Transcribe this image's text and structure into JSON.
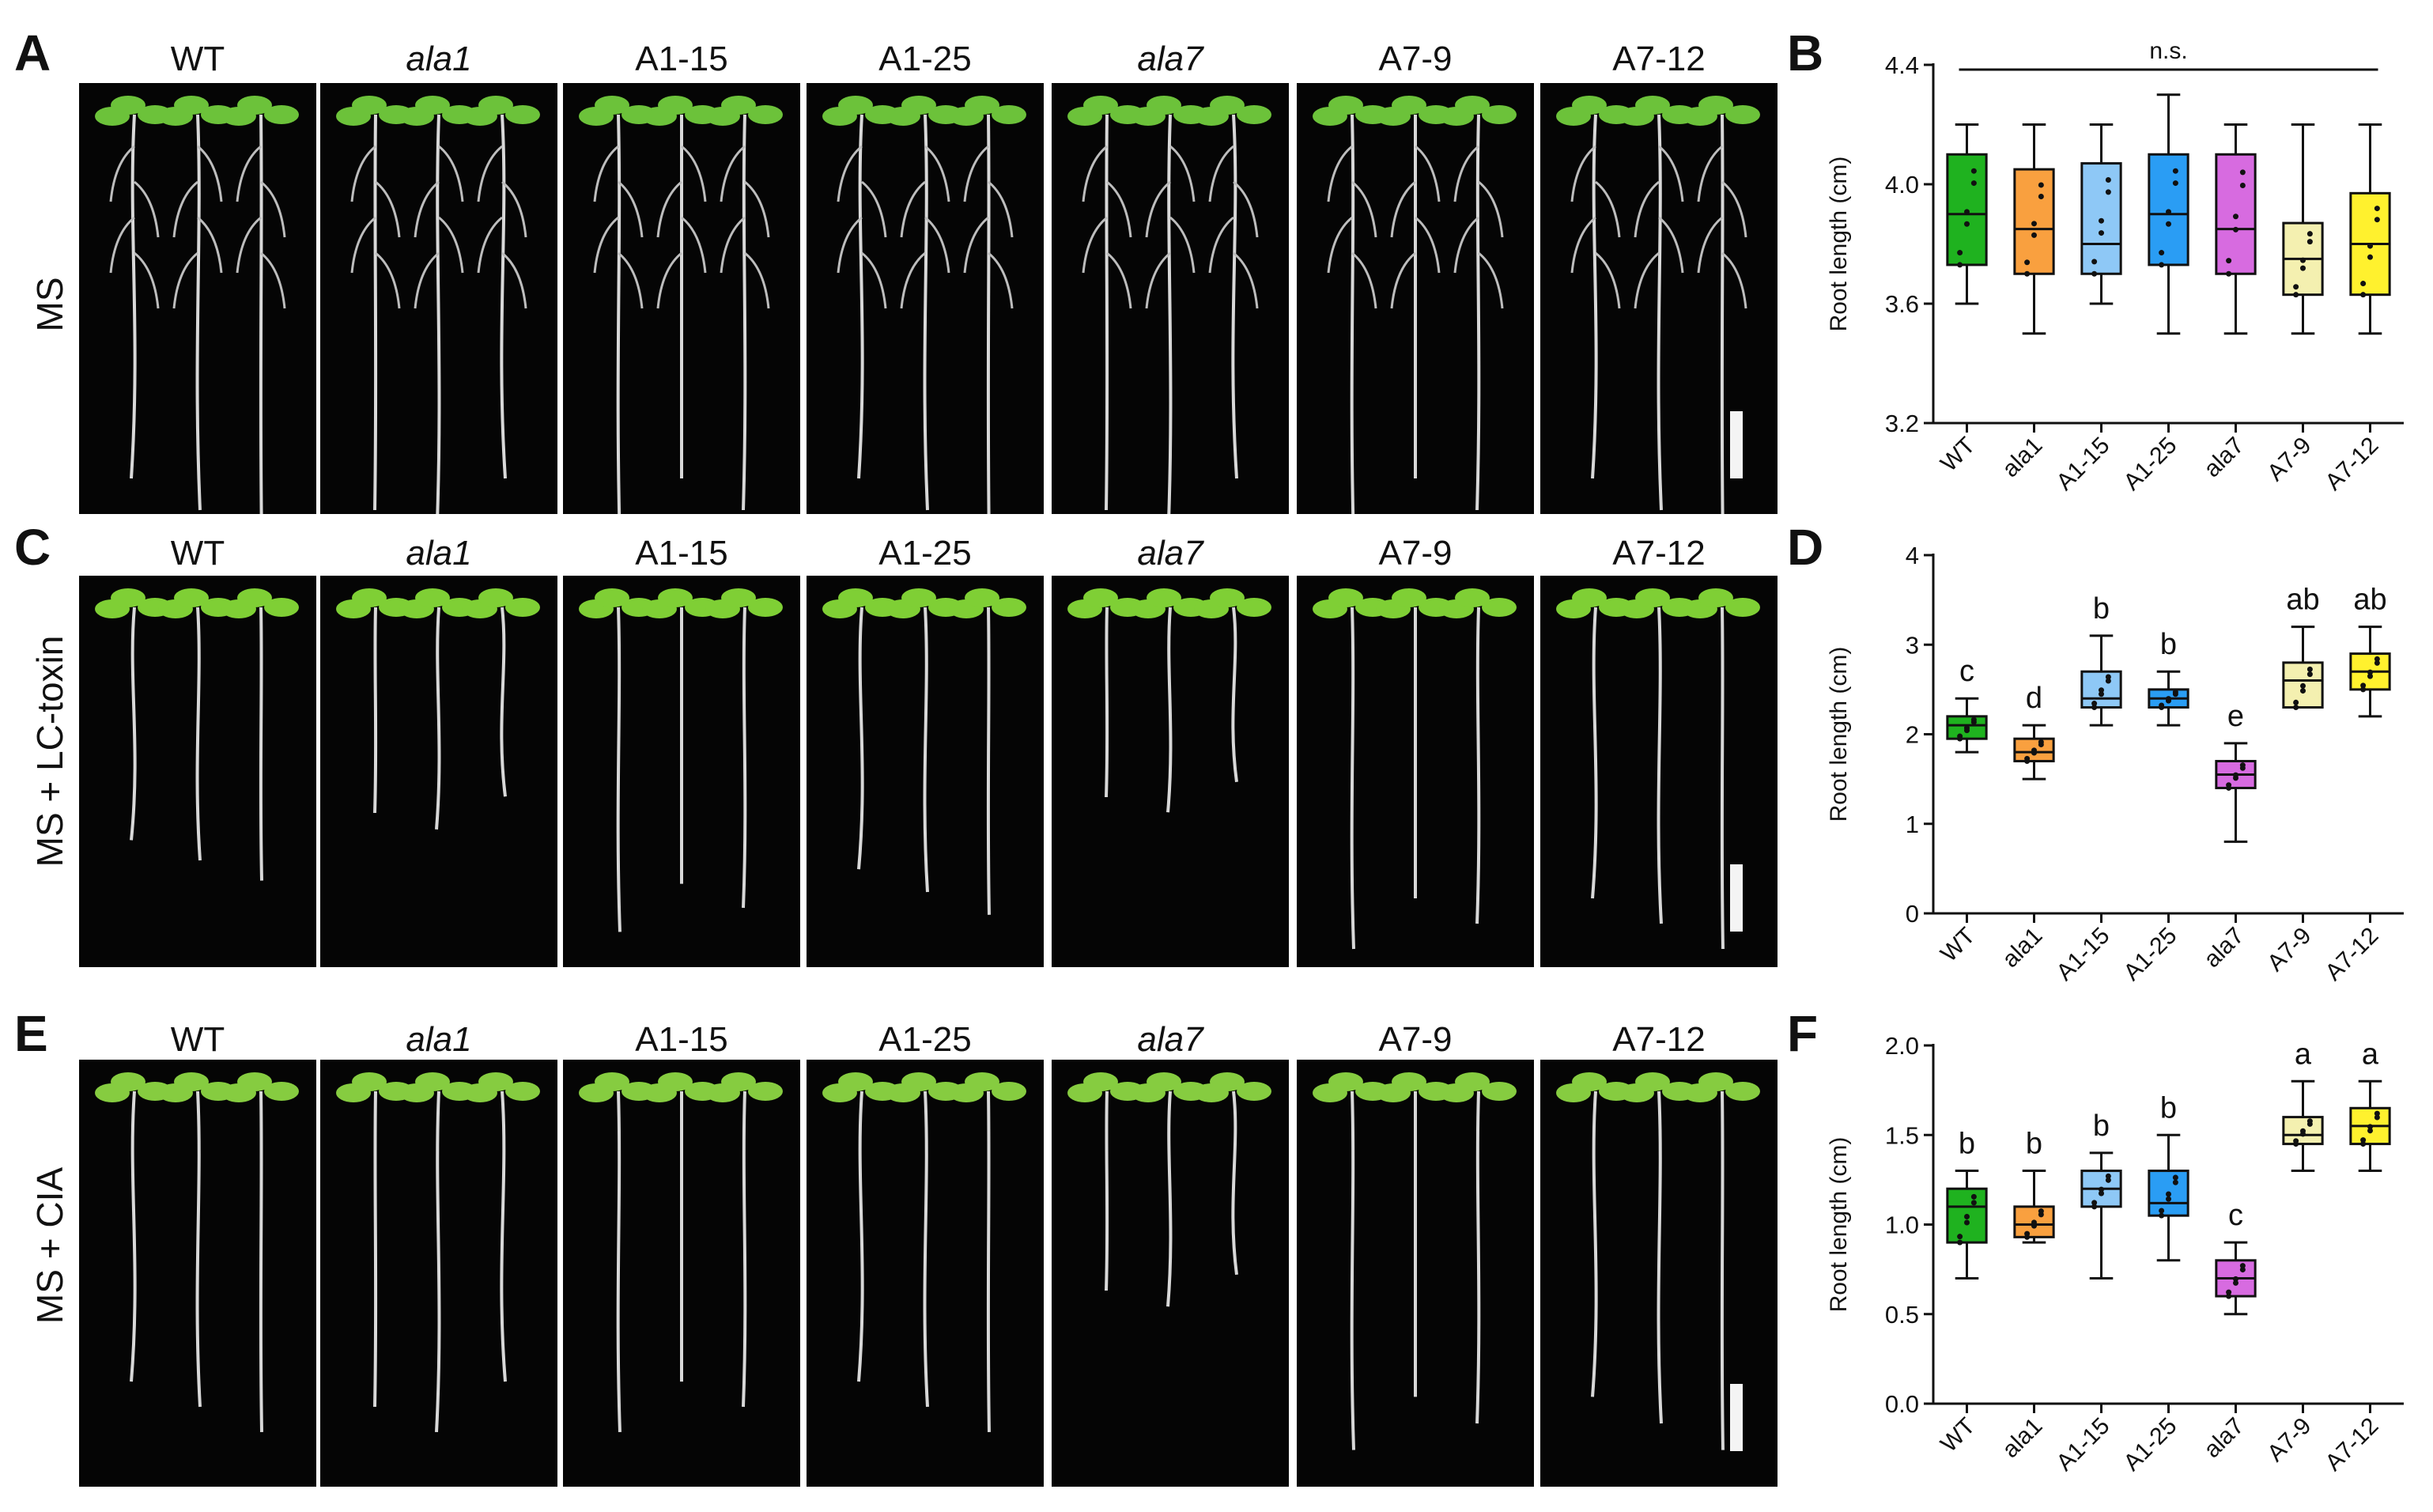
{
  "panels": {
    "A": "A",
    "B": "B",
    "C": "C",
    "D": "D",
    "E": "E",
    "F": "F"
  },
  "genotypes": [
    "WT",
    "ala1",
    "A1-15",
    "A1-25",
    "ala7",
    "A7-9",
    "A7-12"
  ],
  "genotype_italic": [
    false,
    true,
    false,
    false,
    true,
    false,
    false
  ],
  "row_labels": [
    "MS",
    "MS + LC-toxin",
    "MS + CIA"
  ],
  "colors": {
    "WT": "#1fb21f",
    "ala1": "#f9a03f",
    "A1-15": "#8ec8f6",
    "A1-25": "#2a9df4",
    "ala7": "#d76be0",
    "A7-9": "#f4f0b0",
    "A7-12": "#fff12e"
  },
  "chart_data": [
    {
      "panel": "B",
      "type": "box",
      "ylabel": "Root length (cm)",
      "ylim": [
        3.2,
        4.4
      ],
      "yticks": [
        "3.2",
        "3.6",
        "4.0",
        "4.4"
      ],
      "categories": [
        "WT",
        "ala1",
        "A1-15",
        "A1-25",
        "ala7",
        "A7-9",
        "A7-12"
      ],
      "boxes": [
        {
          "min": 3.6,
          "q1": 3.73,
          "median": 3.9,
          "q3": 4.1,
          "max": 4.2
        },
        {
          "min": 3.5,
          "q1": 3.7,
          "median": 3.85,
          "q3": 4.05,
          "max": 4.2
        },
        {
          "min": 3.6,
          "q1": 3.7,
          "median": 3.8,
          "q3": 4.07,
          "max": 4.2
        },
        {
          "min": 3.5,
          "q1": 3.73,
          "median": 3.9,
          "q3": 4.1,
          "max": 4.3
        },
        {
          "min": 3.5,
          "q1": 3.7,
          "median": 3.85,
          "q3": 4.1,
          "max": 4.2
        },
        {
          "min": 3.5,
          "q1": 3.63,
          "median": 3.75,
          "q3": 3.87,
          "max": 4.2
        },
        {
          "min": 3.5,
          "q1": 3.63,
          "median": 3.8,
          "q3": 3.97,
          "max": 4.2
        }
      ],
      "annotation": "n.s.",
      "letters": [
        "",
        "",
        "",
        "",
        "",
        "",
        ""
      ]
    },
    {
      "panel": "D",
      "type": "box",
      "ylabel": "Root length (cm)",
      "ylim": [
        0,
        4
      ],
      "yticks": [
        "0",
        "1",
        "2",
        "3",
        "4"
      ],
      "categories": [
        "WT",
        "ala1",
        "A1-15",
        "A1-25",
        "ala7",
        "A7-9",
        "A7-12"
      ],
      "boxes": [
        {
          "min": 1.8,
          "q1": 1.95,
          "median": 2.1,
          "q3": 2.2,
          "max": 2.4
        },
        {
          "min": 1.5,
          "q1": 1.7,
          "median": 1.8,
          "q3": 1.95,
          "max": 2.1
        },
        {
          "min": 2.1,
          "q1": 2.3,
          "median": 2.4,
          "q3": 2.7,
          "max": 3.1
        },
        {
          "min": 2.1,
          "q1": 2.3,
          "median": 2.4,
          "q3": 2.5,
          "max": 2.7
        },
        {
          "min": 0.8,
          "q1": 1.4,
          "median": 1.55,
          "q3": 1.7,
          "max": 1.9
        },
        {
          "min": 2.3,
          "q1": 2.3,
          "median": 2.6,
          "q3": 2.8,
          "max": 3.2
        },
        {
          "min": 2.2,
          "q1": 2.5,
          "median": 2.7,
          "q3": 2.9,
          "max": 3.2
        }
      ],
      "letters": [
        "c",
        "d",
        "b",
        "b",
        "e",
        "ab",
        "ab"
      ]
    },
    {
      "panel": "F",
      "type": "box",
      "ylabel": "Root length (cm)",
      "ylim": [
        0,
        2
      ],
      "yticks": [
        "0.0",
        "0.5",
        "1.0",
        "1.5",
        "2.0"
      ],
      "categories": [
        "WT",
        "ala1",
        "A1-15",
        "A1-25",
        "ala7",
        "A7-9",
        "A7-12"
      ],
      "boxes": [
        {
          "min": 0.7,
          "q1": 0.9,
          "median": 1.1,
          "q3": 1.2,
          "max": 1.3
        },
        {
          "min": 0.9,
          "q1": 0.93,
          "median": 1.0,
          "q3": 1.1,
          "max": 1.3
        },
        {
          "min": 0.7,
          "q1": 1.1,
          "median": 1.2,
          "q3": 1.3,
          "max": 1.4
        },
        {
          "min": 0.8,
          "q1": 1.05,
          "median": 1.12,
          "q3": 1.3,
          "max": 1.5
        },
        {
          "min": 0.5,
          "q1": 0.6,
          "median": 0.7,
          "q3": 0.8,
          "max": 0.9
        },
        {
          "min": 1.3,
          "q1": 1.45,
          "median": 1.5,
          "q3": 1.6,
          "max": 1.8
        },
        {
          "min": 1.3,
          "q1": 1.45,
          "median": 1.55,
          "q3": 1.65,
          "max": 1.8
        }
      ],
      "letters": [
        "b",
        "b",
        "b",
        "b",
        "c",
        "a",
        "a"
      ]
    }
  ]
}
